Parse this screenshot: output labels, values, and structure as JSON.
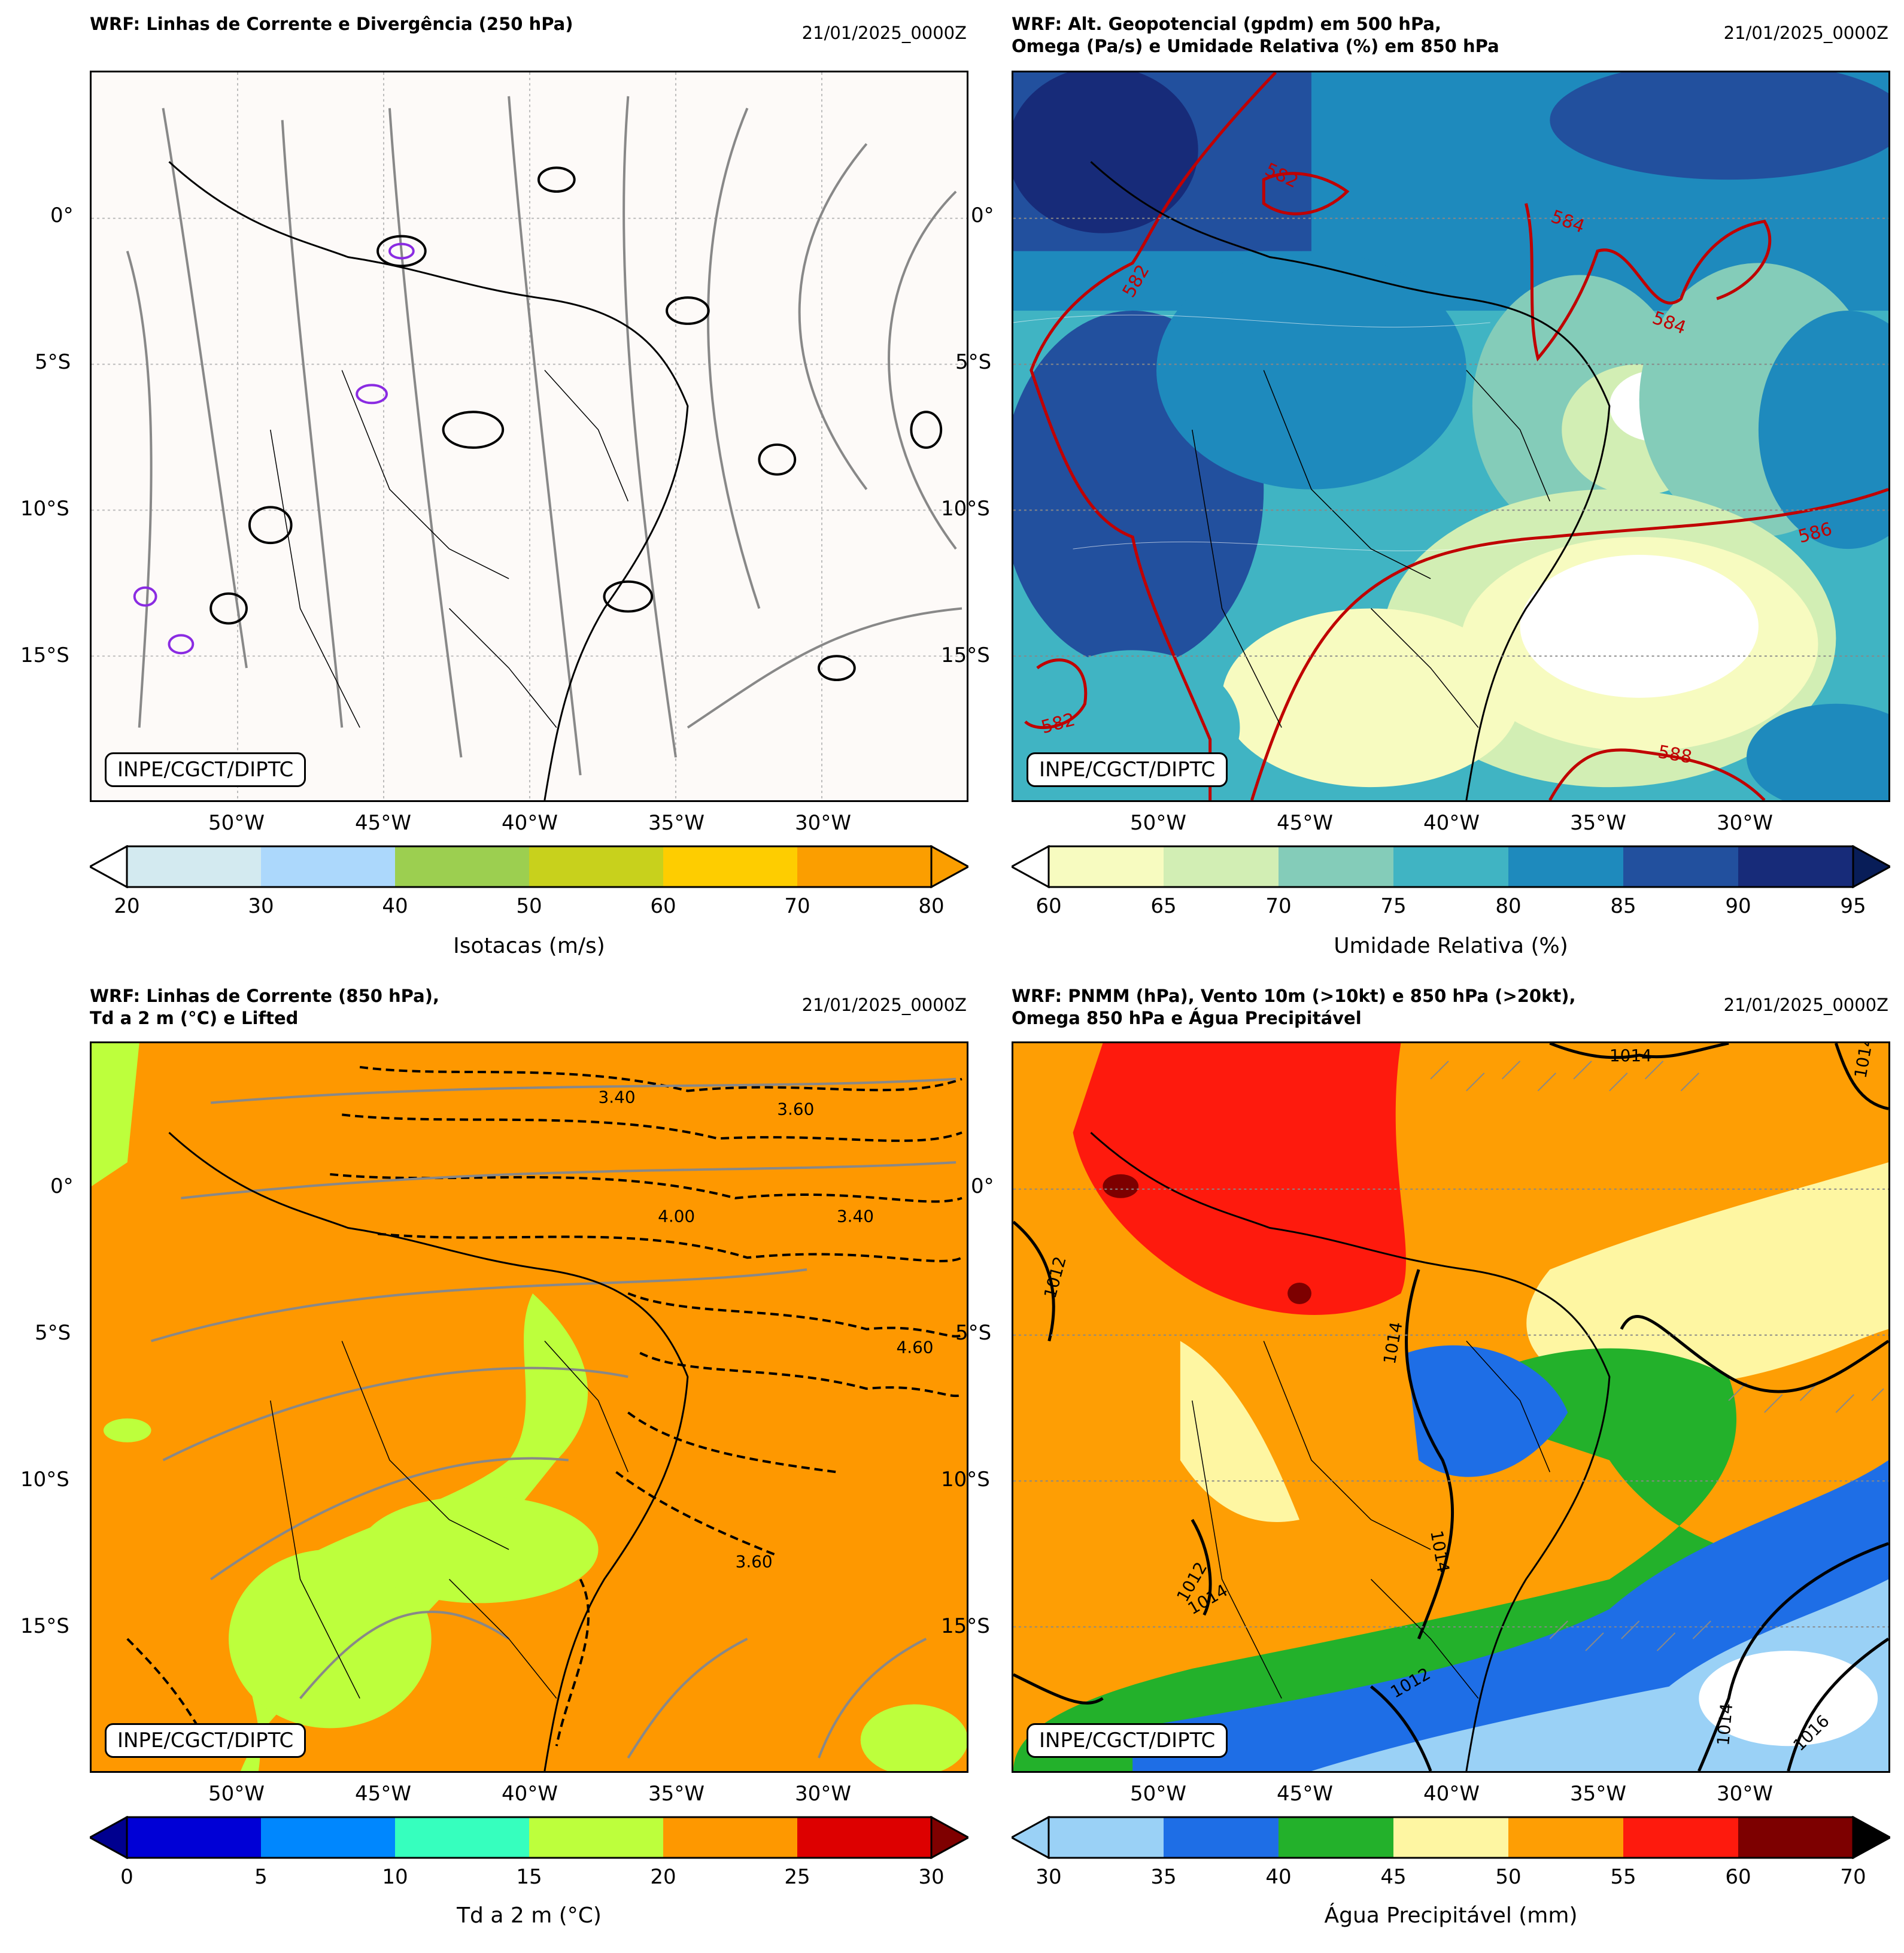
{
  "common": {
    "date": "21/01/2025_0000Z",
    "credit": "INPE/CGCT/DIPTC",
    "lat_labels": [
      "0°",
      "5°S",
      "10°S",
      "15°S"
    ],
    "lon_labels": [
      "50°W",
      "45°W",
      "40°W",
      "35°W",
      "30°W"
    ]
  },
  "panels": [
    {
      "title": "WRF: Linhas de Corrente e Divergência (250 hPa)",
      "colorbar": {
        "label": "Isotacas (m/s)",
        "ticks": [
          "20",
          "30",
          "40",
          "50",
          "60",
          "70",
          "80"
        ],
        "colors": [
          "#d3eaf0",
          "#acd8fc",
          "#9ccf50",
          "#c8d11c",
          "#fecd00",
          "#fb9e00"
        ],
        "ext_low": "#ffffff",
        "ext_high": "#fb9e00"
      }
    },
    {
      "title": "WRF: Alt. Geopotencial (gpdm) em 500 hPa,\nOmega (Pa/s) e Umidade Relativa (%) em 850 hPa",
      "colorbar": {
        "label": "Umidade Relativa (%)",
        "ticks": [
          "60",
          "65",
          "70",
          "75",
          "80",
          "85",
          "90",
          "95"
        ],
        "colors": [
          "#f7fbc0",
          "#d2eeb4",
          "#84ccb9",
          "#40b4c3",
          "#1e8abd",
          "#22509e",
          "#172b79"
        ],
        "ext_low": "#ffffff",
        "ext_high": "#081d58"
      },
      "contour_labels": [
        "582",
        "582",
        "584",
        "584",
        "586",
        "588",
        "582"
      ]
    },
    {
      "title": "WRF: Linhas de Corrente (850 hPa),\nTd a 2 m (°C) e Lifted",
      "colorbar": {
        "label": "Td a 2 m (°C)",
        "ticks": [
          "0",
          "5",
          "10",
          "15",
          "20",
          "25",
          "30"
        ],
        "colors": [
          "#0000d6",
          "#0087fe",
          "#36ffbe",
          "#bdff3c",
          "#fe9800",
          "#dd0000"
        ],
        "ext_low": "#00008f",
        "ext_high": "#7f0000"
      }
    },
    {
      "title": "WRF: PNMM (hPa), Vento 10m (>10kt) e 850 hPa (>20kt),\nOmega 850 hPa e Água Precipitável",
      "colorbar": {
        "label": "Água Precipitável (mm)",
        "ticks": [
          "30",
          "35",
          "40",
          "45",
          "50",
          "55",
          "60",
          "70"
        ],
        "colors": [
          "#9ad1f6",
          "#1e6ee6",
          "#23b12b",
          "#fef6a2",
          "#fe9e04",
          "#fe1a0d",
          "#7d0000"
        ],
        "ext_low": "#9ad1f6",
        "ext_high": "#000000"
      },
      "isobar_labels": [
        "1014",
        "1012",
        "1014",
        "1014",
        "1012",
        "1014",
        "1012",
        "1014",
        "1016",
        "1014"
      ]
    }
  ]
}
